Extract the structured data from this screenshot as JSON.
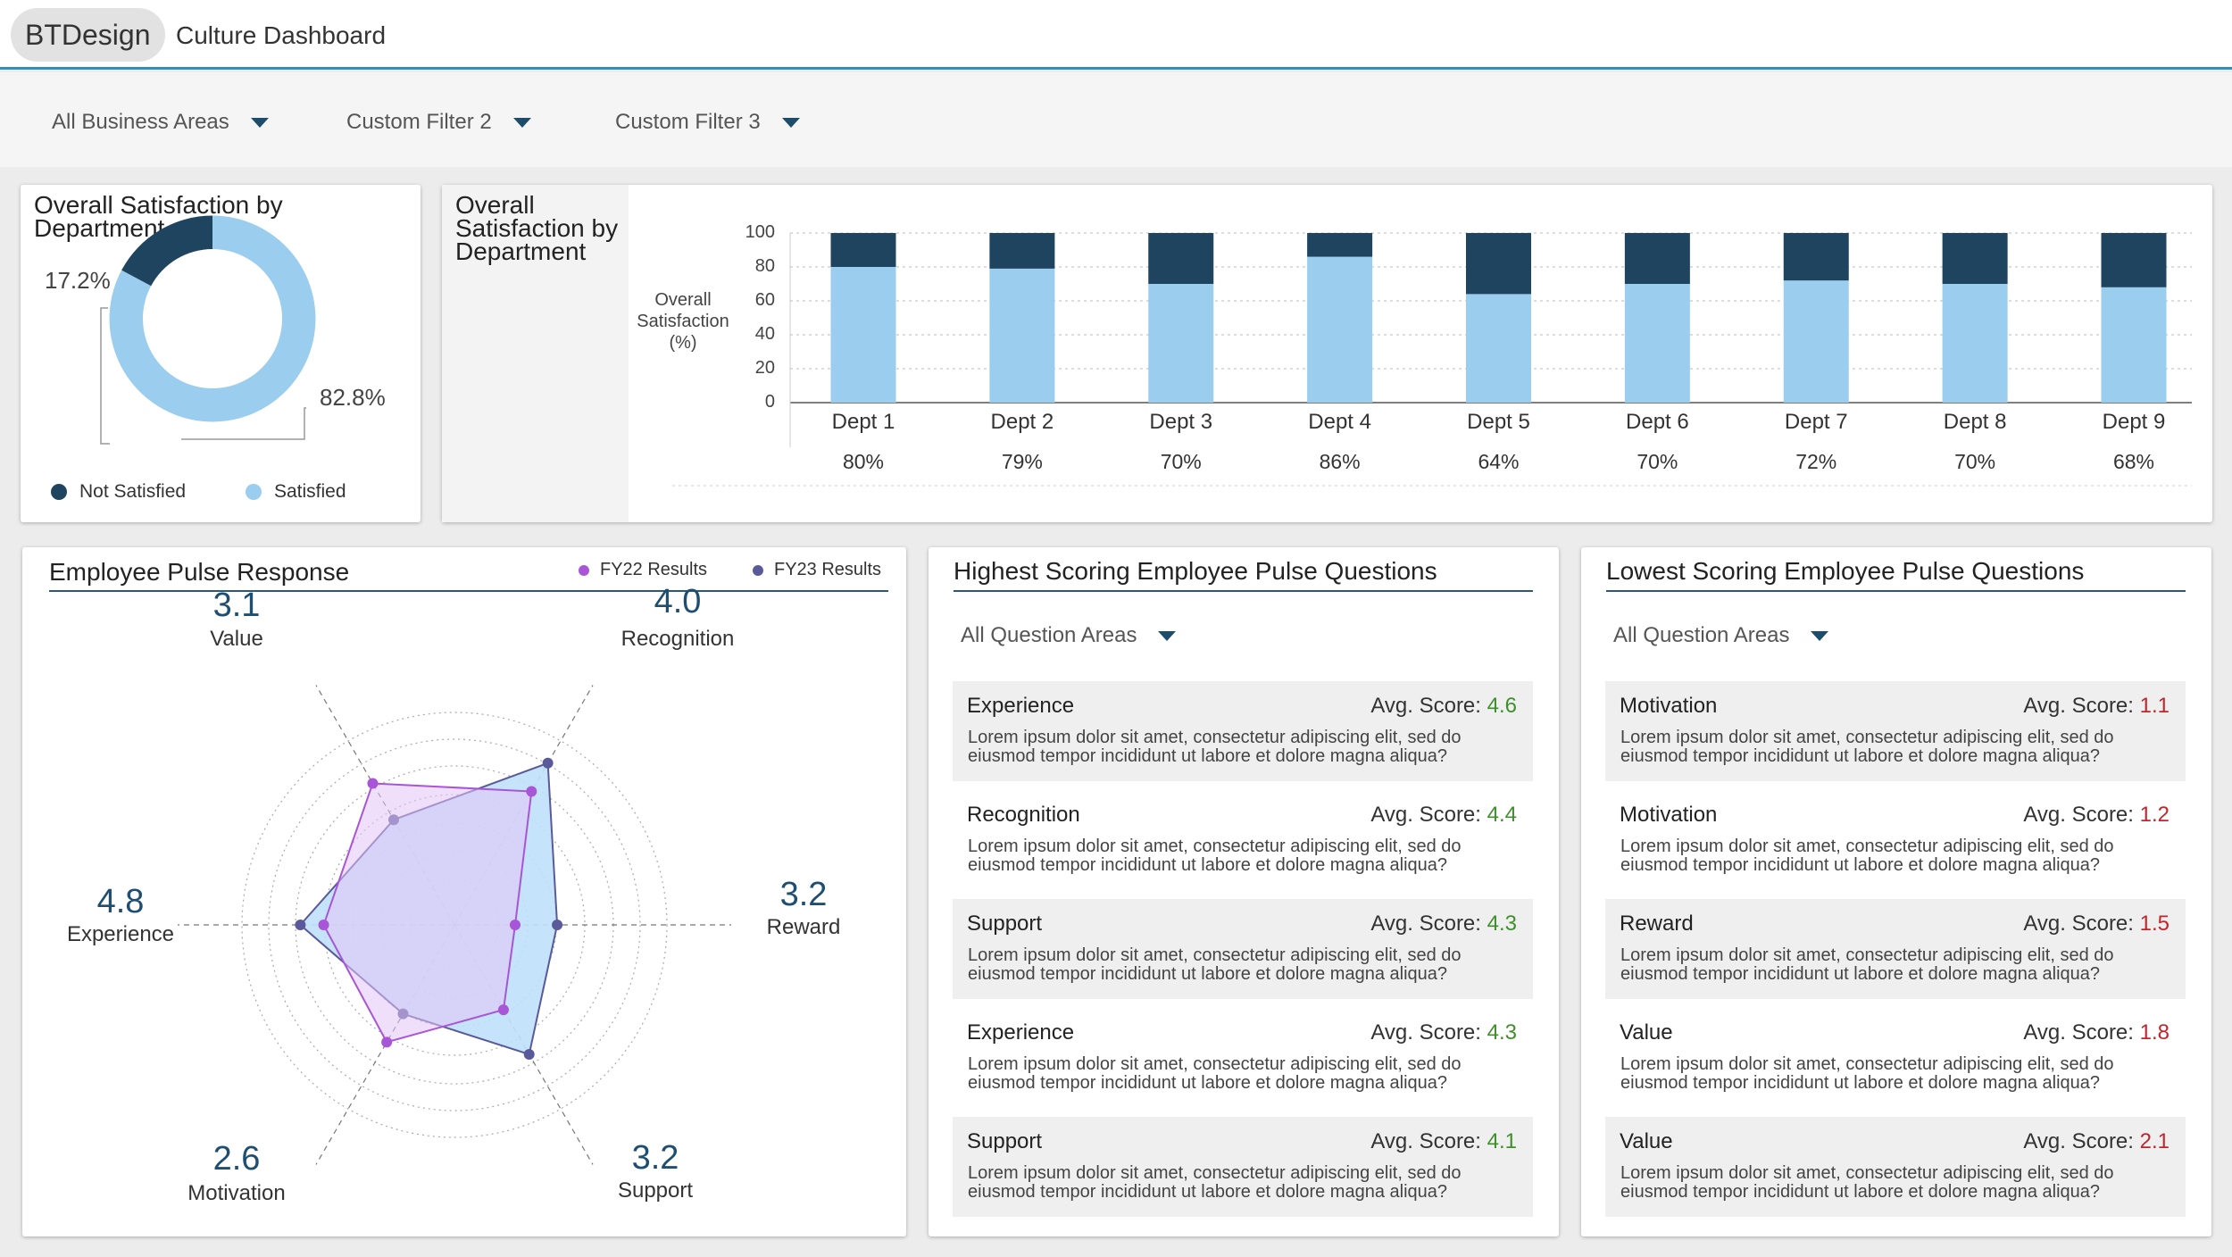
{
  "header": {
    "brand": "BTDesign",
    "title": "Culture Dashboard"
  },
  "filters": [
    "All Business Areas",
    "Custom Filter 2",
    "Custom Filter 3"
  ],
  "donut_card": {
    "title_line1": "Overall Satisfaction by",
    "title_line2": "Department",
    "not_satisfied_pct": "17.2%",
    "satisfied_pct": "82.8%",
    "legend_not_satisfied": "Not Satisfied",
    "legend_satisfied": "Satisfied"
  },
  "bar_card": {
    "title_line1": "Overall",
    "title_line2": "Satisfaction by",
    "title_line3": "Department",
    "ylabel_line1": "Overall",
    "ylabel_line2": "Satisfaction",
    "ylabel_line3": "(%)",
    "ticks": [
      "100",
      "80",
      "60",
      "40",
      "20",
      "0"
    ]
  },
  "chart_data": [
    {
      "type": "pie",
      "title": "Overall Satisfaction by Department",
      "categories": [
        "Not Satisfied",
        "Satisfied"
      ],
      "values": [
        17.2,
        82.8
      ],
      "colors": [
        "#1e4460",
        "#9acdee"
      ]
    },
    {
      "type": "bar",
      "title": "Overall Satisfaction by Department",
      "ylabel": "Overall Satisfaction (%)",
      "categories": [
        "Dept 1",
        "Dept 2",
        "Dept 3",
        "Dept 4",
        "Dept 5",
        "Dept 6",
        "Dept 7",
        "Dept 8",
        "Dept 9"
      ],
      "labels": [
        "80%",
        "79%",
        "70%",
        "86%",
        "64%",
        "70%",
        "72%",
        "70%",
        "68%"
      ],
      "series": [
        {
          "name": "Satisfied",
          "values": [
            80,
            79,
            70,
            86,
            64,
            70,
            72,
            70,
            68
          ],
          "color": "#9acdee"
        },
        {
          "name": "Not Satisfied",
          "values": [
            20,
            21,
            30,
            14,
            36,
            30,
            28,
            30,
            32
          ],
          "color": "#1e4460"
        }
      ],
      "ylim": [
        0,
        100
      ],
      "stacked": true
    },
    {
      "type": "radar",
      "title": "Employee Pulse Response",
      "axes": [
        "Value",
        "Recognition",
        "Reward",
        "Support",
        "Motivation",
        "Experience"
      ],
      "axis_values": [
        "3.1",
        "4.0",
        "3.2",
        "3.2",
        "2.6",
        "4.8"
      ],
      "rmax": 5.2,
      "series": [
        {
          "name": "FY22 Results",
          "values": [
            3.5,
            3.3,
            1.3,
            2.1,
            2.9,
            2.8
          ],
          "color": "#a855d8",
          "fill": "#e3c5f5"
        },
        {
          "name": "FY23 Results",
          "values": [
            2.6,
            4.0,
            2.2,
            3.2,
            2.2,
            3.3
          ],
          "color": "#5a5a9a",
          "fill": "#bfe0fb"
        }
      ]
    }
  ],
  "pulse": {
    "title": "Employee Pulse Response",
    "legend": [
      "FY22 Results",
      "FY23 Results"
    ],
    "legend_colors": [
      "#a855d8",
      "#5a5a9a"
    ]
  },
  "highest": {
    "title": "Highest Scoring Employee Pulse Questions",
    "filter": "All Question Areas",
    "score_label": "Avg. Score: ",
    "items": [
      {
        "name": "Experience",
        "score": "4.6",
        "desc": "Lorem ipsum dolor sit amet, consectetur adipiscing elit, sed do eiusmod tempor incididunt ut labore et dolore magna aliqua?"
      },
      {
        "name": "Recognition",
        "score": "4.4",
        "desc": "Lorem ipsum dolor sit amet, consectetur adipiscing elit, sed do eiusmod tempor incididunt ut labore et dolore magna aliqua?"
      },
      {
        "name": "Support",
        "score": "4.3",
        "desc": "Lorem ipsum dolor sit amet, consectetur adipiscing elit, sed do eiusmod tempor incididunt ut labore et dolore magna aliqua?"
      },
      {
        "name": "Experience",
        "score": "4.3",
        "desc": "Lorem ipsum dolor sit amet, consectetur adipiscing elit, sed do eiusmod tempor incididunt ut labore et dolore magna aliqua?"
      },
      {
        "name": "Support",
        "score": "4.1",
        "desc": "Lorem ipsum dolor sit amet, consectetur adipiscing elit, sed do eiusmod tempor incididunt ut labore et dolore magna aliqua?"
      }
    ]
  },
  "lowest": {
    "title": "Lowest Scoring Employee Pulse Questions",
    "filter": "All Question Areas",
    "score_label": "Avg. Score: ",
    "items": [
      {
        "name": "Motivation",
        "score": "1.1",
        "desc": "Lorem ipsum dolor sit amet, consectetur adipiscing elit, sed do eiusmod tempor incididunt ut labore et dolore magna aliqua?"
      },
      {
        "name": "Motivation",
        "score": "1.2",
        "desc": "Lorem ipsum dolor sit amet, consectetur adipiscing elit, sed do eiusmod tempor incididunt ut labore et dolore magna aliqua?"
      },
      {
        "name": "Reward",
        "score": "1.5",
        "desc": "Lorem ipsum dolor sit amet, consectetur adipiscing elit, sed do eiusmod tempor incididunt ut labore et dolore magna aliqua?"
      },
      {
        "name": "Value",
        "score": "1.8",
        "desc": "Lorem ipsum dolor sit amet, consectetur adipiscing elit, sed do eiusmod tempor incididunt ut labore et dolore magna aliqua?"
      },
      {
        "name": "Value",
        "score": "2.1",
        "desc": "Lorem ipsum dolor sit amet, consectetur adipiscing elit, sed do eiusmod tempor incididunt ut labore et dolore magna aliqua?"
      }
    ]
  }
}
